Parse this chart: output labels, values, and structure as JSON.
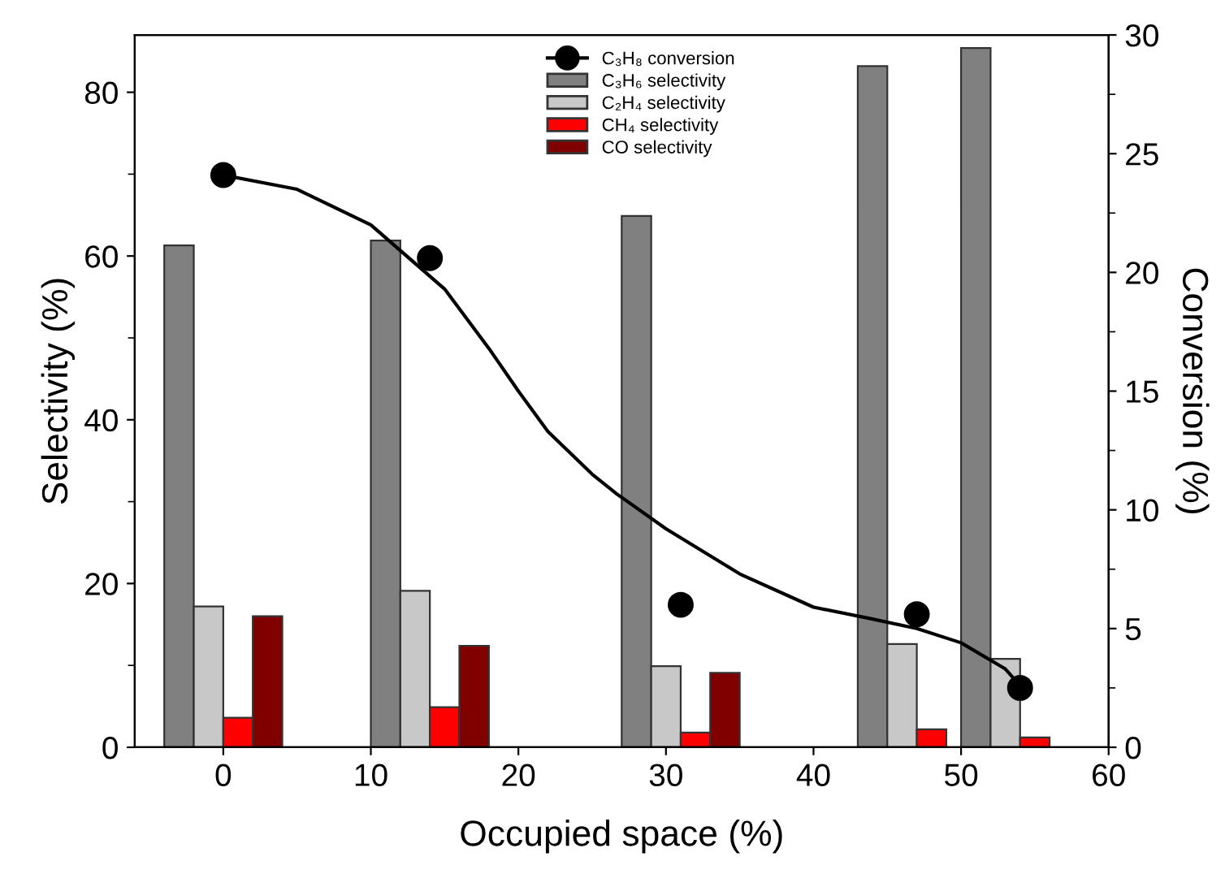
{
  "chart_data": {
    "type": "bar",
    "xlabel": "Occupied space (%)",
    "ylabel": "Selectivity (%)",
    "y2label": "Conversion (%)",
    "xlim": [
      -6,
      60
    ],
    "xticks": [
      0,
      10,
      20,
      30,
      40,
      50,
      60
    ],
    "ylim": [
      0,
      87
    ],
    "yticks": [
      0,
      20,
      40,
      60,
      80
    ],
    "y2lim": [
      0,
      30
    ],
    "y2ticks": [
      0,
      5,
      10,
      15,
      20,
      25,
      30
    ],
    "grid": false,
    "legend": "top",
    "series": [
      {
        "name": "C₃H₈ conversion",
        "type": "scatter",
        "axis": "y2",
        "color": "#000000",
        "marker": "circle",
        "x": [
          0,
          14,
          31,
          47,
          54
        ],
        "values": [
          24.1,
          20.6,
          6.0,
          5.6,
          2.5
        ]
      },
      {
        "type": "line",
        "axis": "y2",
        "color": "#000000",
        "line_style": "solid",
        "x": [
          0,
          5,
          10,
          15,
          18,
          20,
          22,
          25,
          26.6,
          30,
          35,
          40,
          44,
          47,
          50,
          53,
          54
        ],
        "values": [
          24.1,
          23.5,
          22.0,
          19.3,
          16.8,
          15.0,
          13.3,
          11.5,
          10.7,
          9.2,
          7.3,
          5.9,
          5.4,
          5.0,
          4.4,
          3.3,
          2.6
        ]
      },
      {
        "name": "C₃H₆ selectivity",
        "color": "#808080",
        "x": [
          -3,
          11,
          28,
          44,
          51
        ],
        "values": [
          61.3,
          61.9,
          64.9,
          83.2,
          85.4
        ]
      },
      {
        "name": "C₂H₄ selectivity",
        "color": "#c8c8c8",
        "x": [
          -1,
          13,
          30,
          46,
          53
        ],
        "values": [
          17.2,
          19.1,
          9.9,
          12.6,
          10.8
        ]
      },
      {
        "name": "CH₄ selectivity",
        "color": "#ff0000",
        "x": [
          1,
          15,
          32,
          48,
          55
        ],
        "values": [
          3.6,
          4.9,
          1.8,
          2.2,
          1.2
        ]
      },
      {
        "name": "CO selectivity",
        "color": "#800000",
        "x": [
          3,
          17,
          34
        ],
        "values": [
          16.0,
          12.4,
          9.1
        ]
      }
    ]
  }
}
